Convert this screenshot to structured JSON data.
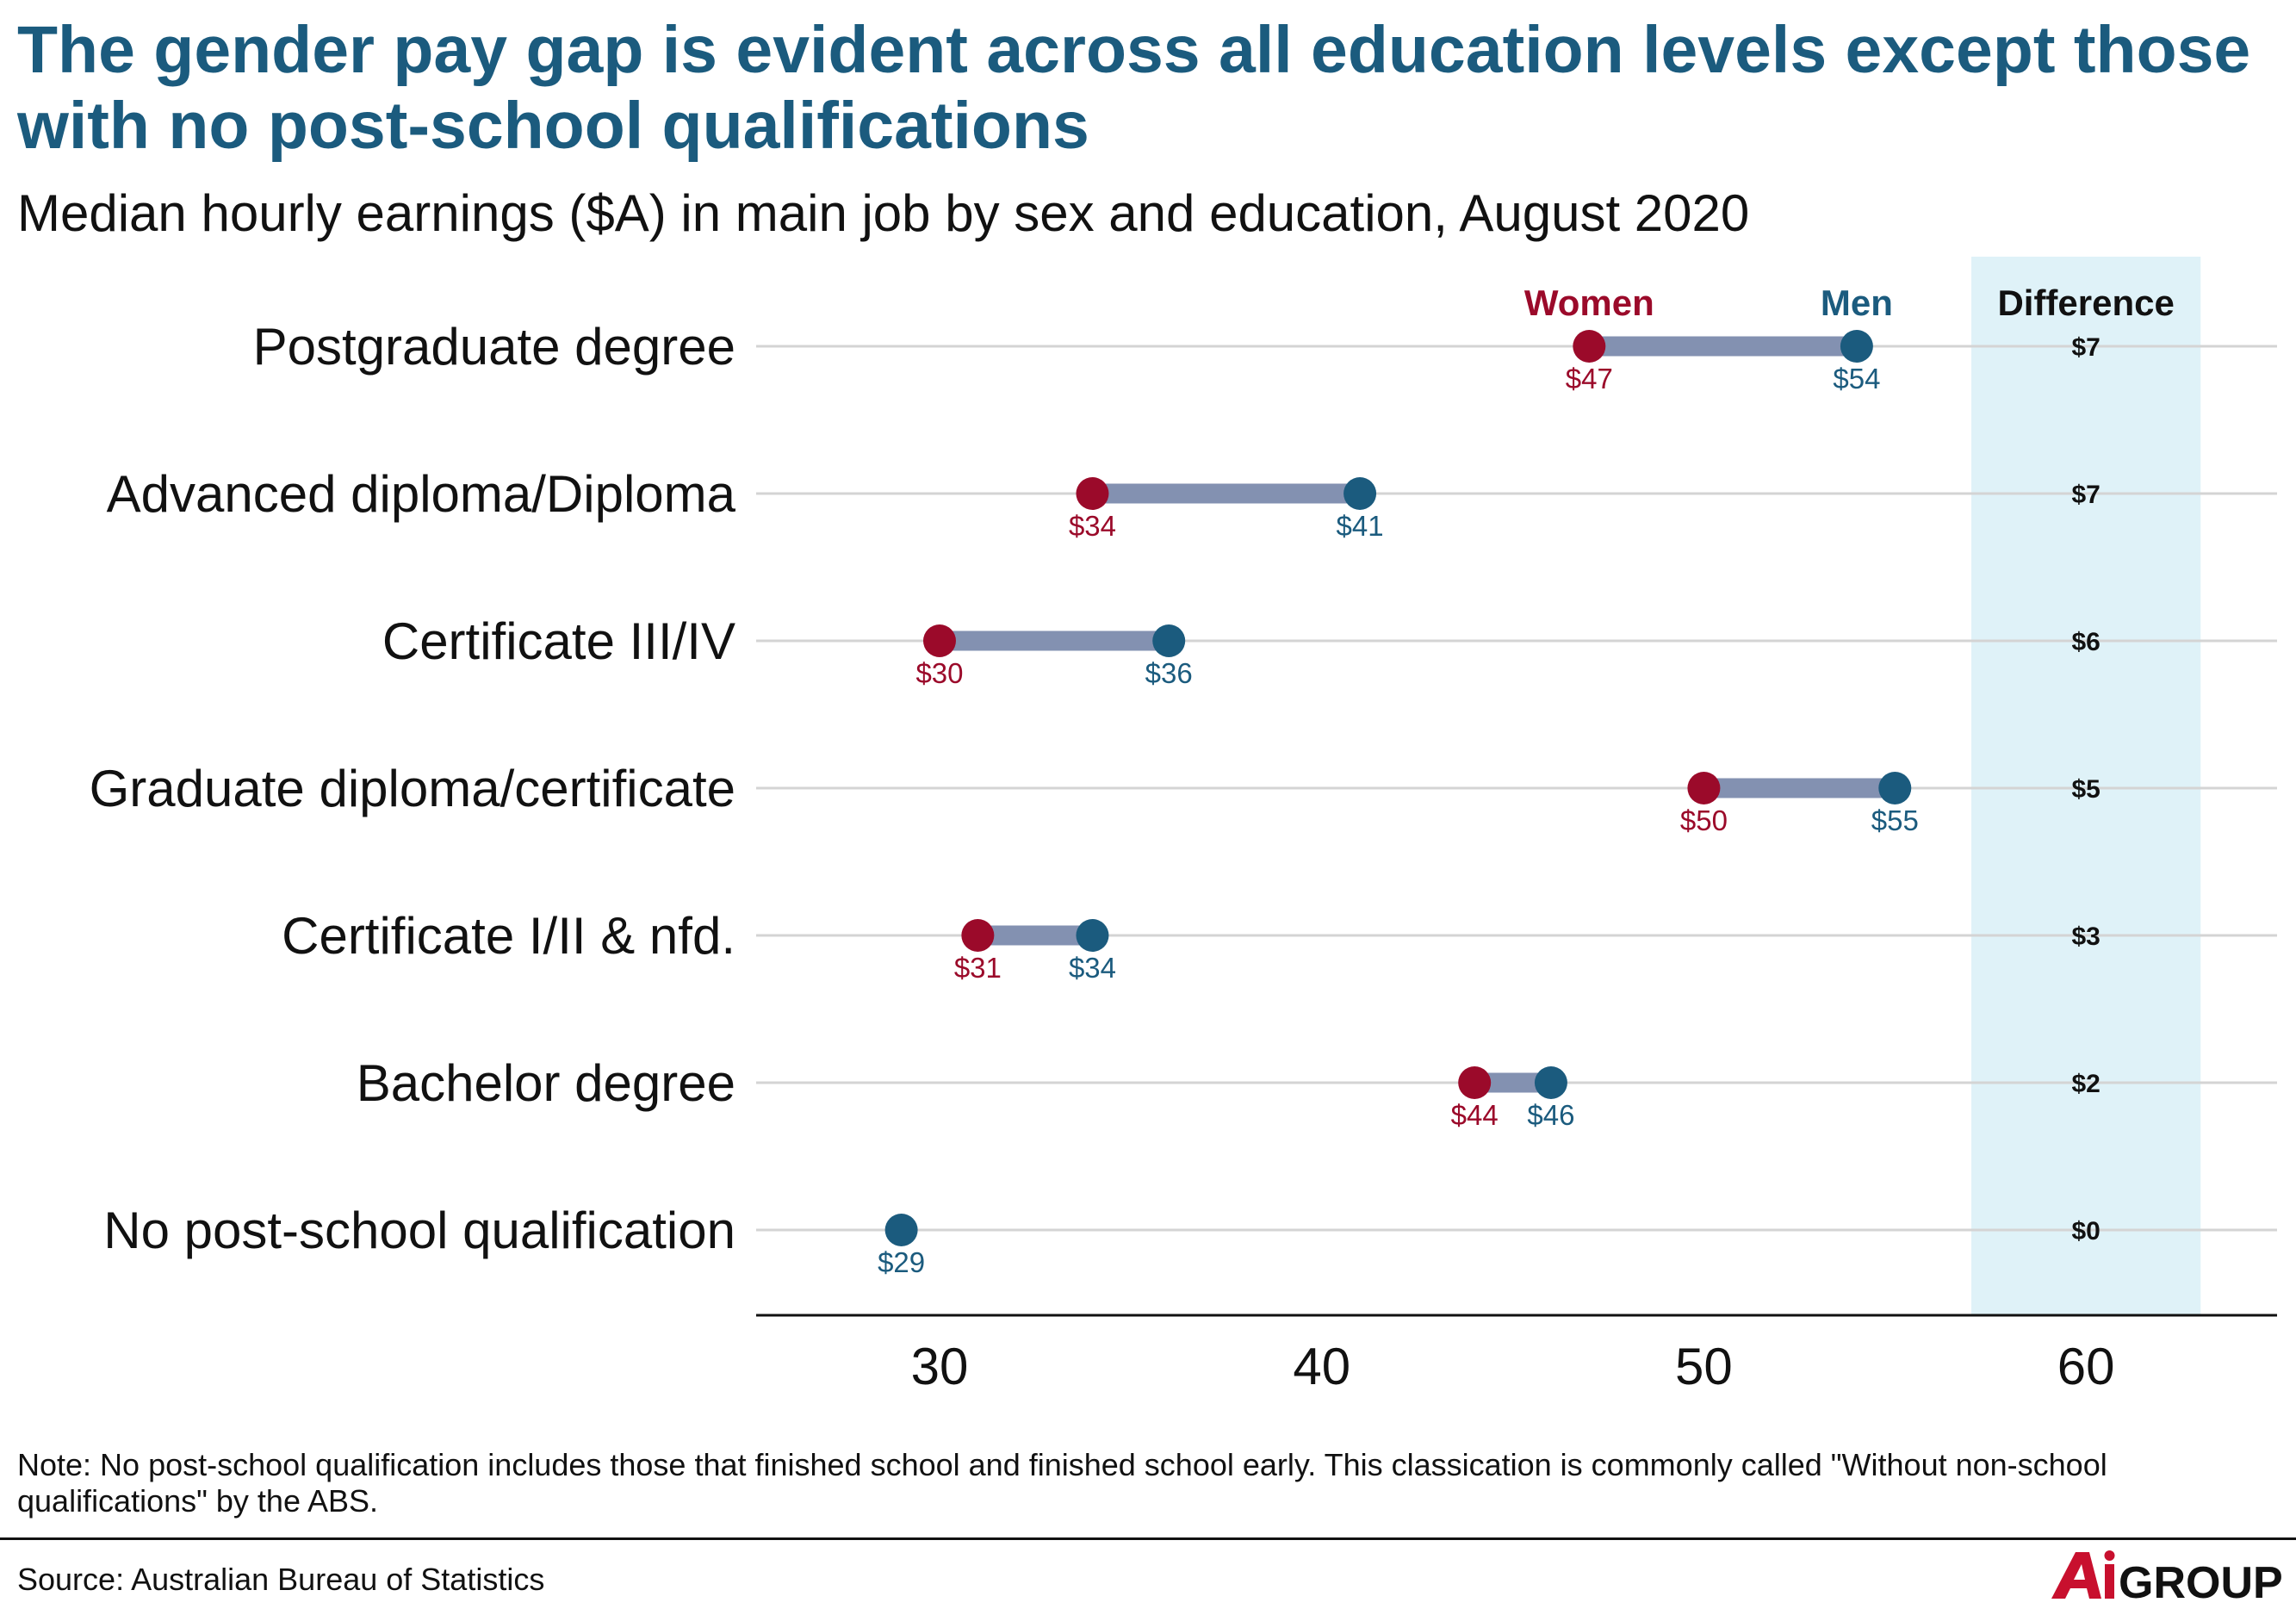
{
  "header": {
    "title": "The gender pay gap is evident across all education levels except those with no post-school qualifications",
    "subtitle": "Median hourly earnings ($A) in main job by sex and education, August 2020"
  },
  "footer": {
    "note": "Note: No post-school qualification includes those that finished school and finished school early. This classication is commonly called \"Without non-school qualifications\" by the ABS.",
    "source": "Source: Australian Bureau of Statistics",
    "logo_text": "AiGROUP"
  },
  "colors": {
    "women": "#9b0a2a",
    "men": "#1b5b7e",
    "connector": "#8391b1",
    "gridline": "#d4d4d4",
    "difference_panel": "#dff2f8",
    "title": "#1b5b7e"
  },
  "chart_data": {
    "type": "dumbbell",
    "categories": [
      "Postgraduate degree",
      "Advanced diploma/Diploma",
      "Certificate III/IV",
      "Graduate diploma/certificate",
      "Certificate I/II & nfd.",
      "Bachelor degree",
      "No post-school qualification"
    ],
    "series": [
      {
        "name": "Women",
        "values": [
          47,
          34,
          30,
          50,
          31,
          44,
          29
        ],
        "labels": [
          "$47",
          "$34",
          "$30",
          "$50",
          "$31",
          "$44",
          ""
        ]
      },
      {
        "name": "Men",
        "values": [
          54,
          41,
          36,
          55,
          34,
          46,
          29
        ],
        "labels": [
          "$54",
          "$41",
          "$36",
          "$55",
          "$34",
          "$46",
          "$29"
        ]
      }
    ],
    "difference": {
      "header": "Difference",
      "values": [
        "$7",
        "$7",
        "$6",
        "$5",
        "$3",
        "$2",
        "$0"
      ]
    },
    "x_ticks": [
      30,
      40,
      50,
      60
    ],
    "xlim": [
      25.2,
      65
    ],
    "difference_band": [
      57,
      63
    ],
    "grid": true,
    "legend": "inline-top"
  }
}
